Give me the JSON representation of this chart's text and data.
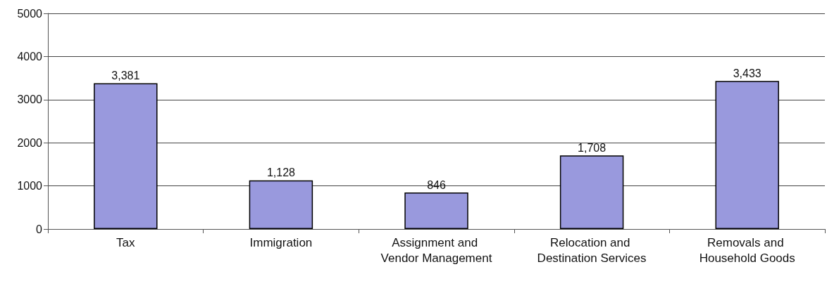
{
  "chart_data": {
    "type": "bar",
    "categories": [
      "Tax",
      "Immigration",
      "Assignment and Vendor Management",
      "Relocation and Destination Services",
      "Removals and Household Goods"
    ],
    "values": [
      3381,
      1128,
      846,
      1708,
      3433
    ],
    "value_labels": [
      "3,381",
      "1,128",
      "846",
      "1,708",
      "3,433"
    ],
    "color": "#9999dd",
    "ylim": [
      0,
      5000
    ],
    "yticks": [
      0,
      1000,
      2000,
      3000,
      4000,
      5000
    ],
    "grid": "y"
  }
}
